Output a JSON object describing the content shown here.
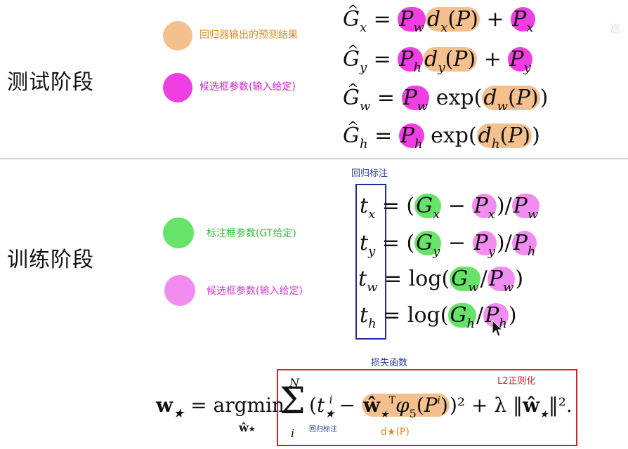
{
  "sections": {
    "test_title": "测试阶段",
    "train_title": "训练阶段"
  },
  "legend": {
    "regressor_output": "回归器输出的预测结果",
    "candidate_params_input": "候选框参数(输入给定)",
    "gt_params": "标注框参数(GT给定)",
    "candidate_params_input2": "候选框参数(输入给定)"
  },
  "annotations": {
    "regression_label": "回归标注",
    "loss_function": "损失函数",
    "l2_regularization": "L2正则化",
    "regression_label_small": "回归标注",
    "d_star_p": "d★(P)",
    "watermark": "高"
  },
  "colors": {
    "orange": "#f3c08e",
    "magenta": "#ee3fe2",
    "green": "#68e36a",
    "pink": "#f18cf0",
    "blue_box": "#1f2e9a",
    "red_box": "#d4202a"
  },
  "equations": {
    "test": [
      "Ĝx = Pw dx(P) + Px",
      "Ĝy = Ph dy(P) + Py",
      "Ĝw = Pw exp(dw(P))",
      "Ĝh = Ph exp(dh(P))"
    ],
    "train": [
      "tx = (Gx − Px)/Pw",
      "ty = (Gy − Py)/Ph",
      "tw = log(Gw/Pw)",
      "th = log(Gh/Ph)"
    ],
    "loss": "w★ = argmin ŵ★ Σ_i^N (t★^i − ŵ★ᵀ φ5(P^i))² + λ ||ŵ★||²."
  }
}
